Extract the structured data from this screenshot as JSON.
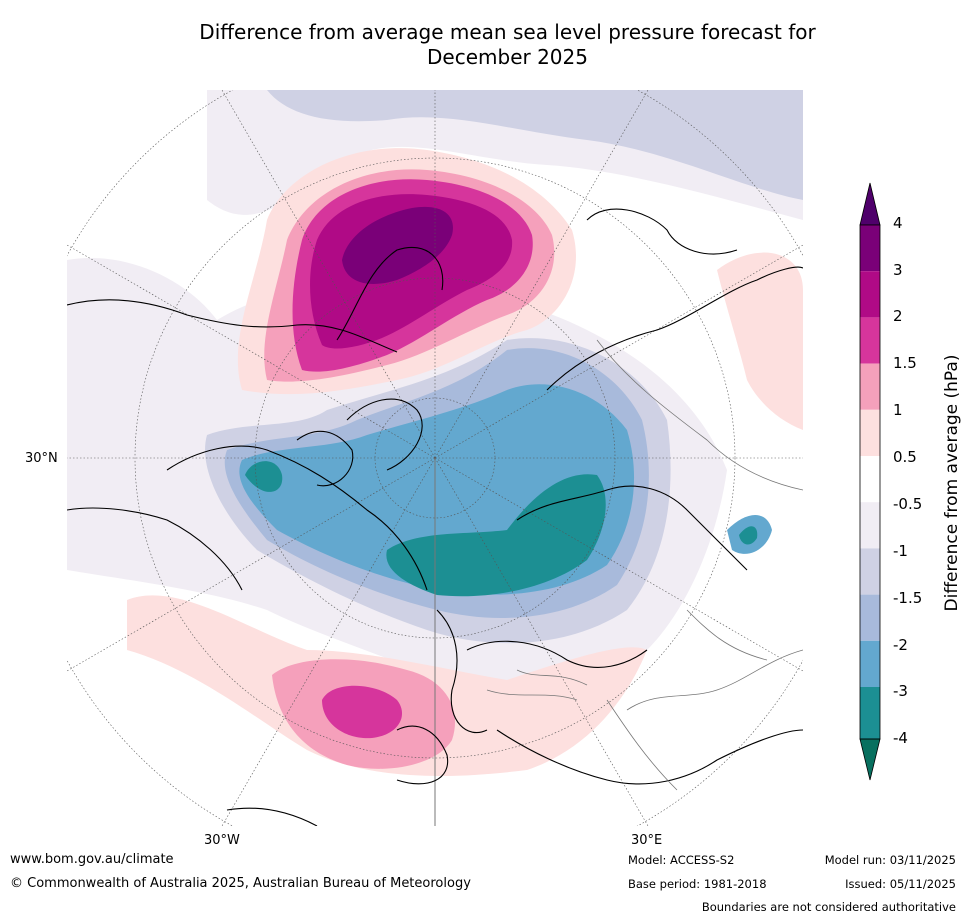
{
  "title": {
    "line1": "Difference from average mean sea level pressure forecast for",
    "line2": "December 2025"
  },
  "map": {
    "lat_labels": [
      "30°N"
    ],
    "lon_labels": [
      "30°W",
      "30°E"
    ]
  },
  "colorbar": {
    "title": "Difference from average (hPa)",
    "tick_labels": [
      "4",
      "3",
      "2",
      "1.5",
      "1",
      "0.5",
      "-0.5",
      "-1",
      "-1.5",
      "-2",
      "-3",
      "-4"
    ],
    "colors": {
      "over": "#4f006b",
      "c4_3": "#7a0078",
      "c3_2": "#b00a86",
      "c2_15": "#d6359c",
      "c15_1": "#f5a0bb",
      "c1_05": "#fde0df",
      "neutral": "#ffffff",
      "m05_1": "#f1edf4",
      "m1_15": "#cfd1e4",
      "m15_2": "#a8badb",
      "m2_3": "#63a8cf",
      "m3_4": "#1c8f93",
      "under": "#08705f"
    }
  },
  "footer": {
    "website": "www.bom.gov.au/climate",
    "copyright": "© Commonwealth of Australia 2025, Australian Bureau of Meteorology",
    "model": "Model: ACCESS-S2",
    "base_period": "Base period: 1981-2018",
    "model_run": "Model run: 03/11/2025",
    "issued": "Issued: 05/11/2025",
    "disclaimer": "Boundaries are not considered authoritative"
  }
}
